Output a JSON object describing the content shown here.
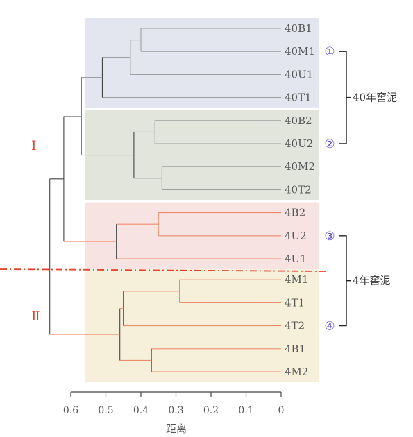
{
  "chart_data": {
    "type": "dendrogram",
    "orientation": "horizontal",
    "xlabel": "距离",
    "x_ticks": [
      "0.6",
      "0.5",
      "0.4",
      "0.3",
      "0.2",
      "0.1",
      "0"
    ],
    "x_tick_values": [
      0.6,
      0.5,
      0.4,
      0.3,
      0.2,
      0.1,
      0
    ],
    "xlim": [
      0.6,
      0
    ],
    "leaves": [
      "40B1",
      "40M1",
      "40U1",
      "40T1",
      "40B2",
      "40U2",
      "40M2",
      "40T2",
      "4B2",
      "4U2",
      "4U1",
      "4M1",
      "4T1",
      "4T2",
      "4B1",
      "4M2"
    ],
    "merges": [
      {
        "id": "m1",
        "children": [
          "40B1",
          "40M1"
        ],
        "height": 0.4
      },
      {
        "id": "m2",
        "children": [
          "m1",
          "40U1"
        ],
        "height": 0.43
      },
      {
        "id": "m3",
        "children": [
          "m2",
          "40T1"
        ],
        "height": 0.51
      },
      {
        "id": "m4",
        "children": [
          "40B2",
          "40U2"
        ],
        "height": 0.36
      },
      {
        "id": "m5",
        "children": [
          "40M2",
          "40T2"
        ],
        "height": 0.34
      },
      {
        "id": "m6",
        "children": [
          "m4",
          "m5"
        ],
        "height": 0.42
      },
      {
        "id": "m7",
        "children": [
          "m3",
          "m6"
        ],
        "height": 0.57
      },
      {
        "id": "m8",
        "children": [
          "4B2",
          "4U2"
        ],
        "height": 0.35
      },
      {
        "id": "m9",
        "children": [
          "m8",
          "4U1"
        ],
        "height": 0.47
      },
      {
        "id": "m10",
        "children": [
          "m7",
          "m9"
        ],
        "height": 0.62
      },
      {
        "id": "m11",
        "children": [
          "4M1",
          "4T1"
        ],
        "height": 0.29
      },
      {
        "id": "m12",
        "children": [
          "m11",
          "4T2"
        ],
        "height": 0.45
      },
      {
        "id": "m13",
        "children": [
          "4B1",
          "4M2"
        ],
        "height": 0.37
      },
      {
        "id": "m14",
        "children": [
          "m12",
          "m13"
        ],
        "height": 0.46
      },
      {
        "id": "m15",
        "children": [
          "m10",
          "m14"
        ],
        "height": 0.66
      }
    ],
    "clusters": [
      {
        "marker": "①",
        "leaves": [
          "40B1",
          "40M1",
          "40U1",
          "40T1"
        ],
        "color": "#e3e6ef"
      },
      {
        "marker": "②",
        "leaves": [
          "40B2",
          "40U2",
          "40M2",
          "40T2"
        ],
        "color": "#e2e5dc"
      },
      {
        "marker": "③",
        "leaves": [
          "4B2",
          "4U2",
          "4U1"
        ],
        "color": "#f8e3e3"
      },
      {
        "marker": "④",
        "leaves": [
          "4M1",
          "4T1",
          "4T2",
          "4B1",
          "4M2"
        ],
        "color": "#f6f0da"
      }
    ],
    "groups": [
      {
        "label": "40年窖泥",
        "clusters": [
          "①",
          "②"
        ]
      },
      {
        "label": "4年窖泥",
        "clusters": [
          "③",
          "④"
        ]
      }
    ],
    "divisions": [
      "Ⅰ",
      "Ⅱ"
    ],
    "colors": {
      "line_40": "#9e9e9e",
      "line_4": "#ef8a6a",
      "line_root": "#444444",
      "cut_line": "#e8402a",
      "marker": "#5a4fcf",
      "roman": "#e8402a"
    }
  }
}
